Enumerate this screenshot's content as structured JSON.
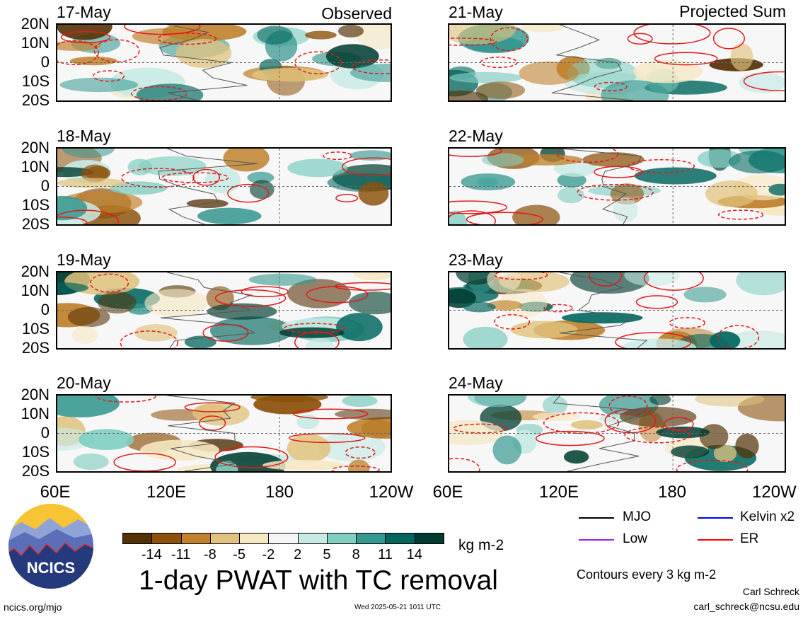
{
  "observed_heading": "Observed",
  "projected_heading": "Projected Sum",
  "panels": [
    {
      "date": "17-May"
    },
    {
      "date": "18-May"
    },
    {
      "date": "19-May"
    },
    {
      "date": "20-May"
    },
    {
      "date": "21-May"
    },
    {
      "date": "22-May"
    },
    {
      "date": "23-May"
    },
    {
      "date": "24-May"
    }
  ],
  "lat_labels": [
    "20N",
    "10N",
    "0",
    "10S",
    "20S"
  ],
  "lon_labels": [
    "60E",
    "120E",
    "180",
    "120W"
  ],
  "colorbar": {
    "colors": [
      "#543005",
      "#8c510a",
      "#bf812d",
      "#dfc27d",
      "#f6e8c3",
      "#f5f5f5",
      "#c7eae5",
      "#80cdc1",
      "#35978f",
      "#01665e",
      "#003c30"
    ],
    "ticks": [
      "-14",
      "-11",
      "-8",
      "-5",
      "-2",
      "2",
      "5",
      "8",
      "11",
      "14"
    ],
    "units": "kg m-2"
  },
  "title": "1-day PWAT with TC removal",
  "legend": {
    "mjo": {
      "label": "MJO",
      "color": "#000000"
    },
    "kelvin": {
      "label": "Kelvin x2",
      "color": "#0000ff"
    },
    "low": {
      "label": "Low",
      "color": "#a020f0"
    },
    "er": {
      "label": "ER",
      "color": "#ff0000"
    }
  },
  "contour_note": "Contours every 3 kg m-2",
  "author": "Carl Schreck",
  "email": "carl_schreck@ncsu.edu",
  "website": "ncics.org/mjo",
  "timestamp": "Wed 2025-05-21 1011 UTC",
  "logo_text": "NCICS"
}
